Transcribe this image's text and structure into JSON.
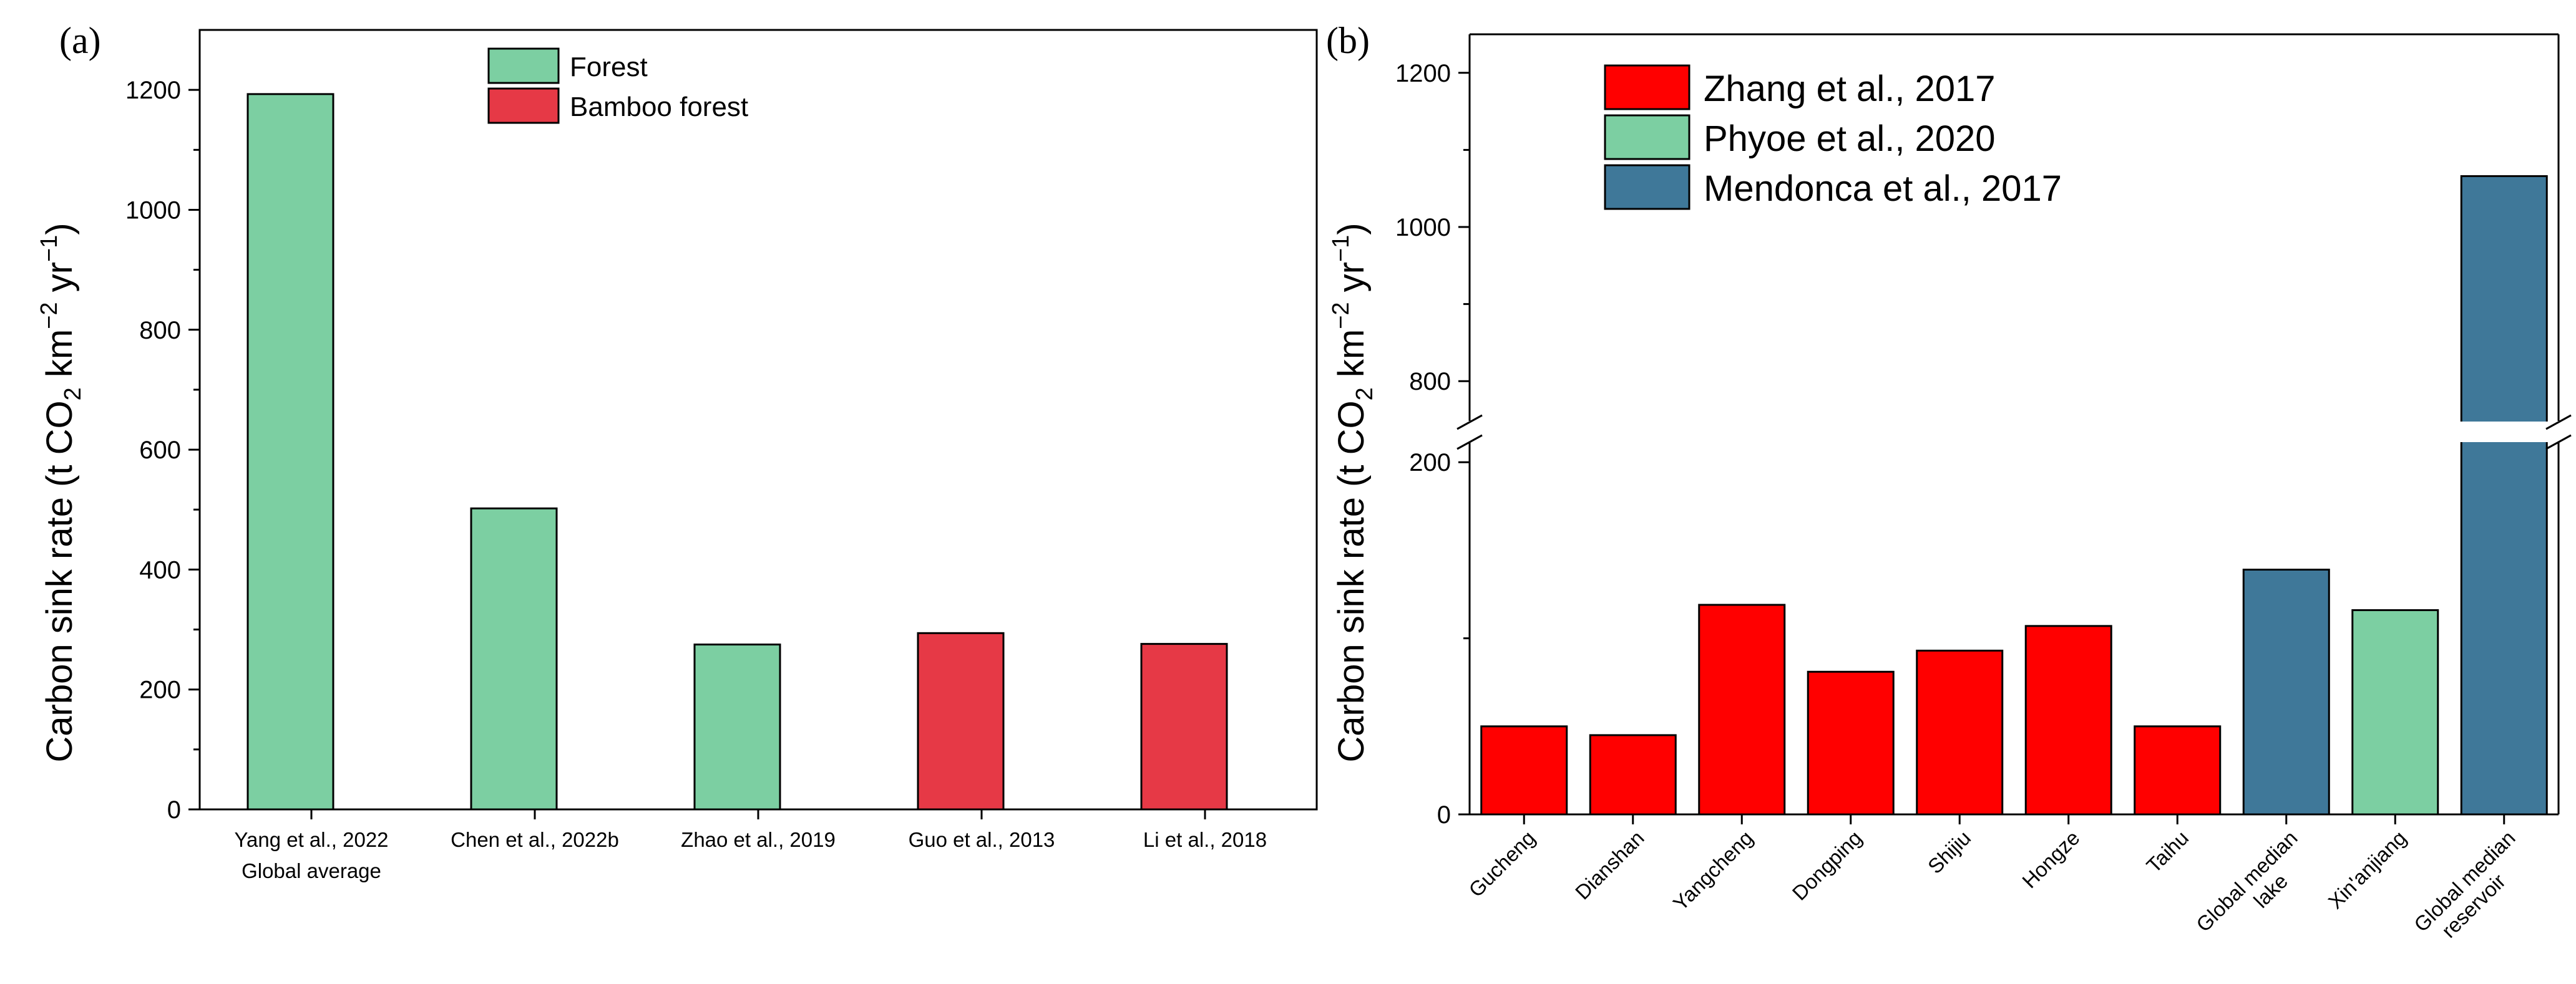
{
  "colors": {
    "forest": "#7ccfa2",
    "bamboo_forest": "#e63946",
    "zhang": "#ff0000",
    "phyoe": "#7ccfa2",
    "mendonca": "#3f7899"
  },
  "chart_data": [
    {
      "panel": "(a)",
      "type": "bar",
      "ylabel": {
        "part1": "Carbon sink rate (t CO",
        "sub1": "2",
        "part2": " km",
        "sup1": "−2",
        "part3": " yr",
        "sup2": "−1",
        "part4": ")"
      },
      "xlabel": "",
      "ylim": [
        0,
        1300
      ],
      "yticks": [
        "0",
        "200",
        "400",
        "600",
        "800",
        "1000",
        "1200"
      ],
      "ytick_values": [
        0,
        200,
        400,
        600,
        800,
        1000,
        1200
      ],
      "legend": {
        "position": "top-center",
        "entries": [
          {
            "label": "Forest",
            "color": "#7ccfa2"
          },
          {
            "label": "Bamboo forest",
            "color": "#e63946"
          }
        ]
      },
      "categories": [
        {
          "label": "Yang et al., 2022",
          "label2": "Global average",
          "value": 1193,
          "series": "Forest",
          "color": "#7ccfa2"
        },
        {
          "label": "Chen et al., 2022b",
          "label2": "",
          "value": 502,
          "series": "Forest",
          "color": "#7ccfa2"
        },
        {
          "label": "Zhao et al., 2019",
          "label2": "",
          "value": 275,
          "series": "Forest",
          "color": "#7ccfa2"
        },
        {
          "label": "Guo et al., 2013",
          "label2": "",
          "value": 294,
          "series": "Bamboo forest",
          "color": "#e63946"
        },
        {
          "label": "Li et al., 2018",
          "label2": "",
          "value": 276,
          "series": "Bamboo forest",
          "color": "#e63946"
        }
      ]
    },
    {
      "panel": "(b)",
      "type": "bar",
      "ylabel": {
        "part1": "Carbon sink rate (t CO",
        "sub1": "2",
        "part2": " km",
        "sup1": "−2",
        "part3": " yr",
        "sup2": "−1",
        "part4": ")"
      },
      "xlabel": "",
      "broken_axis": {
        "lower_ylim": [
          0,
          210
        ],
        "upper_ylim": [
          750,
          1250
        ],
        "break_between": [
          200,
          800
        ]
      },
      "yticks": [
        "0",
        "200",
        "800",
        "1000",
        "1200"
      ],
      "ytick_values": [
        0,
        200,
        800,
        1000,
        1200
      ],
      "legend": {
        "position": "top-left",
        "entries": [
          {
            "label": "Zhang et al., 2017",
            "color": "#ff0000"
          },
          {
            "label": "Phyoe et al., 2020",
            "color": "#7ccfa2"
          },
          {
            "label": "Mendonca et al., 2017",
            "color": "#3f7899"
          }
        ]
      },
      "categories": [
        {
          "label": "Gucheng",
          "label2": "",
          "value": 50,
          "series": "Zhang et al., 2017",
          "color": "#ff0000"
        },
        {
          "label": "Dianshan",
          "label2": "",
          "value": 45,
          "series": "Zhang et al., 2017",
          "color": "#ff0000"
        },
        {
          "label": "Yangcheng",
          "label2": "",
          "value": 119,
          "series": "Zhang et al., 2017",
          "color": "#ff0000"
        },
        {
          "label": "Dongping",
          "label2": "",
          "value": 81,
          "series": "Zhang et al., 2017",
          "color": "#ff0000"
        },
        {
          "label": "Shijiu",
          "label2": "",
          "value": 93,
          "series": "Zhang et al., 2017",
          "color": "#ff0000"
        },
        {
          "label": "Hongze",
          "label2": "",
          "value": 107,
          "series": "Zhang et al., 2017",
          "color": "#ff0000"
        },
        {
          "label": "Taihu",
          "label2": "",
          "value": 50,
          "series": "Zhang et al., 2017",
          "color": "#ff0000"
        },
        {
          "label": "Global median",
          "label2": "lake",
          "value": 139,
          "series": "Mendonca et al., 2017",
          "color": "#3f7899"
        },
        {
          "label": "Xin'anjiang",
          "label2": "",
          "value": 116,
          "series": "Phyoe et al., 2020",
          "color": "#7ccfa2"
        },
        {
          "label": "Global median",
          "label2": "reservoir",
          "value": 1066,
          "series": "Mendonca et al., 2017",
          "color": "#3f7899"
        }
      ]
    }
  ]
}
